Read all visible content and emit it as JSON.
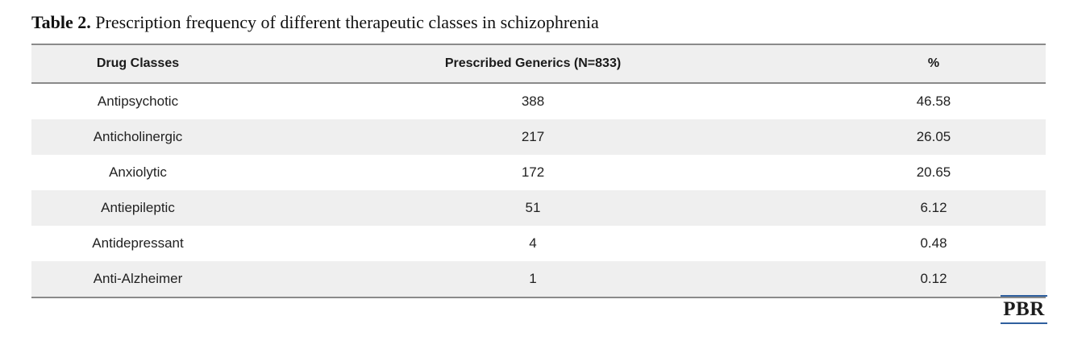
{
  "caption": {
    "label": "Table 2.",
    "text": "Prescription frequency of different therapeutic classes in schizophrenia"
  },
  "table": {
    "headers": [
      "Drug Classes",
      "Prescribed Generics (N=833)",
      "%"
    ],
    "rows": [
      [
        "Antipsychotic",
        "388",
        "46.58"
      ],
      [
        "Anticholinergic",
        "217",
        "26.05"
      ],
      [
        "Anxiolytic",
        "172",
        "20.65"
      ],
      [
        "Antiepileptic",
        "51",
        "6.12"
      ],
      [
        "Antidepressant",
        "4",
        "0.48"
      ],
      [
        "Anti-Alzheimer",
        "1",
        "0.12"
      ]
    ]
  },
  "logo": {
    "text": "PBR",
    "accent_color": "#2f5f9e"
  }
}
